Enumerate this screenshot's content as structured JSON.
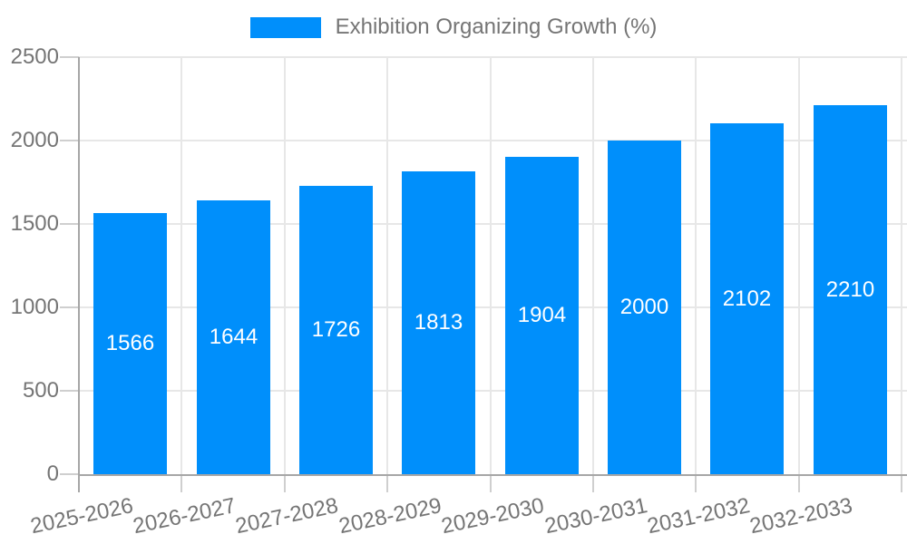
{
  "legend": {
    "label": "Exhibition Organizing Growth (%)"
  },
  "chart_data": {
    "type": "bar",
    "title": "Exhibition Organizing Growth (%)",
    "categories": [
      "2025-2026",
      "2026-2027",
      "2027-2028",
      "2028-2029",
      "2029-2030",
      "2030-2031",
      "2031-2032",
      "2032-2033"
    ],
    "values": [
      1566,
      1644,
      1726,
      1813,
      1904,
      2000,
      2102,
      2210
    ],
    "value_labels": [
      "1566",
      "1644",
      "1726",
      "1813",
      "1904",
      "2000",
      "2102",
      "2210"
    ],
    "xlabel": "",
    "ylabel": "",
    "ylim": [
      0,
      2500
    ],
    "y_ticks": [
      0,
      500,
      1000,
      1500,
      2000,
      2500
    ],
    "y_tick_labels": [
      "0",
      "500",
      "1000",
      "1500",
      "2000",
      "2500"
    ],
    "grid": true,
    "legend_position": "top",
    "colors": {
      "bar": "#008FFB",
      "value_text": "#ffffff",
      "label_text": "#757575",
      "grid_line": "#e7e7e7",
      "tick_line": "#cfcfcf",
      "axis_line": "#a6a6a6",
      "background": "#ffffff"
    }
  }
}
